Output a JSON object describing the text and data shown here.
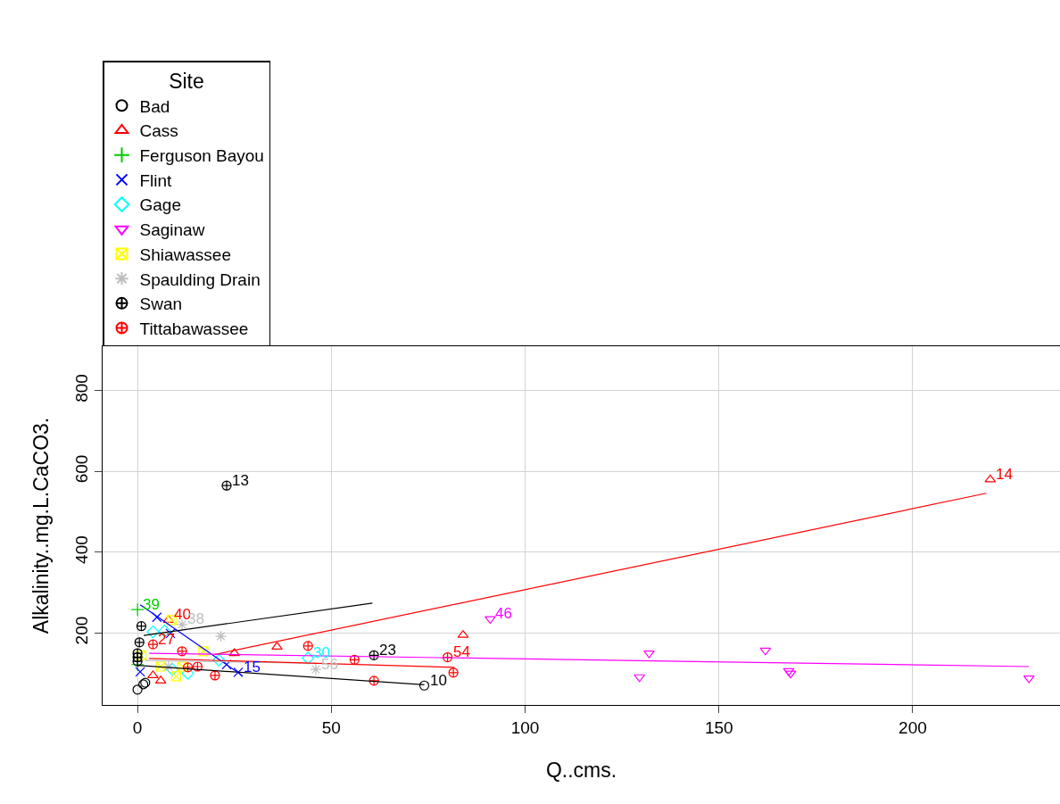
{
  "chart_data": {
    "type": "scatter",
    "xlabel": "Q..cms.",
    "ylabel": "Alkalinity..mg.L.CaCO3.",
    "legend_title": "Site",
    "legend": "top left",
    "grid": true,
    "xlim": [
      -9,
      238
    ],
    "ylim": [
      22,
      910
    ],
    "xticks": [
      0,
      50,
      100,
      150,
      200
    ],
    "yticks": [
      200,
      400,
      600,
      800
    ],
    "series": [
      {
        "name": "Bad",
        "color": "#000000",
        "marker": "circle",
        "x": [
          0,
          1.5,
          2,
          74
        ],
        "values": [
          60,
          73,
          77,
          70
        ]
      },
      {
        "name": "Cass",
        "color": "#ff0000",
        "marker": "triangle",
        "x": [
          8,
          4,
          6,
          25,
          36,
          84,
          220
        ],
        "values": [
          232,
          95,
          82,
          150,
          166,
          195,
          580
        ]
      },
      {
        "name": "Ferguson Bayou",
        "color": "#00cd00",
        "marker": "cross",
        "x": [
          0,
          0
        ],
        "values": [
          258,
          122
        ]
      },
      {
        "name": "Flint",
        "color": "#0000ff",
        "marker": "x",
        "x": [
          5,
          26,
          0.7,
          23,
          8.5
        ],
        "values": [
          239,
          103,
          104,
          122,
          199
        ]
      },
      {
        "name": "Gage",
        "color": "#00ffff",
        "marker": "diamond",
        "x": [
          44,
          4,
          9,
          13,
          21,
          7
        ],
        "values": [
          138,
          203,
          110,
          100,
          133,
          205
        ]
      },
      {
        "name": "Saginaw",
        "color": "#ff00ff",
        "marker": "triangle-down",
        "x": [
          91,
          132,
          129.5,
          162,
          168,
          168.5,
          230
        ],
        "values": [
          235,
          150,
          91,
          157,
          106,
          100,
          88
        ]
      },
      {
        "name": "Shiawassee",
        "color": "#ffff00",
        "marker": "cross",
        "x": [
          8.8,
          17,
          10,
          6,
          11.5,
          1
        ],
        "values": [
          232,
          155,
          93,
          117,
          117,
          145
        ]
      },
      {
        "name": "Spaulding Drain",
        "color": "#bebebe",
        "marker": "cross",
        "x": [
          21.5,
          11.5,
          46,
          8
        ],
        "values": [
          192,
          221,
          110,
          117
        ]
      },
      {
        "name": "Swan",
        "color": "#000000",
        "marker": "cross",
        "x": [
          23,
          61,
          1,
          0.5,
          0,
          0,
          0
        ],
        "values": [
          565,
          145,
          217,
          177,
          150,
          140,
          130
        ]
      },
      {
        "name": "Tittabawassee",
        "color": "#ff0000",
        "marker": "cross",
        "x": [
          4,
          11.5,
          13,
          15.5,
          20,
          44,
          56,
          61,
          80,
          81.5
        ],
        "values": [
          172,
          155,
          115,
          117,
          95,
          168,
          134,
          82,
          140,
          102
        ]
      },
      {
        "type": "line",
        "color": "#000000",
        "x": [
          0,
          74
        ],
        "values": [
          120,
          72
        ]
      },
      {
        "type": "line",
        "color": "#ff0000",
        "x": [
          20,
          219
        ],
        "values": [
          147,
          546
        ]
      },
      {
        "type": "line",
        "color": "#0000ff",
        "x": [
          0.7,
          27
        ],
        "values": [
          270,
          95
        ]
      },
      {
        "type": "line",
        "color": "#ff00ff",
        "x": [
          3,
          230
        ],
        "values": [
          150,
          117
        ]
      },
      {
        "type": "line",
        "color": "#bebebe",
        "x": [
          2,
          46
        ],
        "values": [
          132,
          125
        ]
      },
      {
        "type": "line",
        "color": "#000000",
        "x": [
          1.6,
          60.6
        ],
        "values": [
          194,
          274
        ]
      },
      {
        "type": "line",
        "color": "#ff0000",
        "x": [
          3,
          82
        ],
        "values": [
          137,
          115
        ]
      }
    ],
    "annotations": [
      {
        "text": "39",
        "x": 0,
        "y": 258
      },
      {
        "text": "40",
        "x": 8,
        "y": 232
      },
      {
        "text": "38",
        "x": 11.5,
        "y": 221
      },
      {
        "text": "27",
        "x": 4,
        "y": 172
      },
      {
        "text": "15",
        "x": 26,
        "y": 103
      },
      {
        "text": "13",
        "x": 23,
        "y": 565
      },
      {
        "text": "14",
        "x": 220,
        "y": 580
      },
      {
        "text": "46",
        "x": 91,
        "y": 235
      },
      {
        "text": "30",
        "x": 44,
        "y": 138
      },
      {
        "text": "56",
        "x": 46,
        "y": 110
      },
      {
        "text": "23",
        "x": 61,
        "y": 145
      },
      {
        "text": "54",
        "x": 80,
        "y": 140
      },
      {
        "text": "10",
        "x": 74,
        "y": 70
      }
    ]
  }
}
